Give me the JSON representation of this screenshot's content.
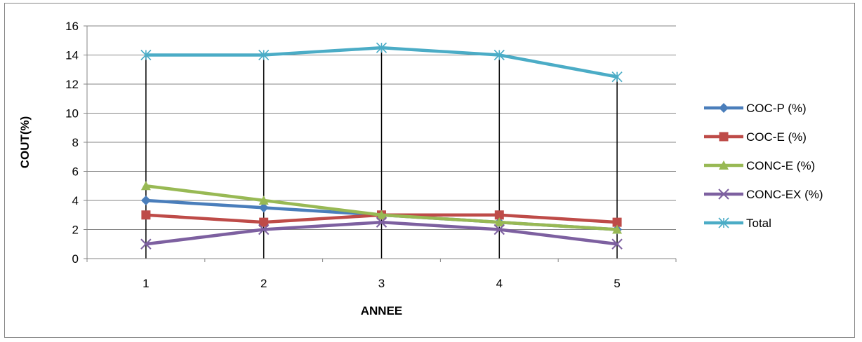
{
  "chart_data": {
    "type": "line",
    "title": "",
    "xlabel": "ANNEE",
    "ylabel": "COUT(%)",
    "categories": [
      "1",
      "2",
      "3",
      "4",
      "5"
    ],
    "ylim": [
      0,
      16
    ],
    "yticks": [
      "0",
      "2",
      "4",
      "6",
      "8",
      "10",
      "12",
      "14",
      "16"
    ],
    "grid": true,
    "drop_lines": true,
    "legend_position": "right",
    "series": [
      {
        "name": "COC-P (%)",
        "values": [
          4,
          3.5,
          3,
          2.5,
          2
        ],
        "color": "#4A7EBB",
        "marker": "diamond"
      },
      {
        "name": "COC-E (%)",
        "values": [
          3,
          2.5,
          3,
          3,
          2.5
        ],
        "color": "#BE4B48",
        "marker": "square"
      },
      {
        "name": "CONC-E (%)",
        "values": [
          5,
          4,
          3,
          2.5,
          2
        ],
        "color": "#98B954",
        "marker": "triangle"
      },
      {
        "name": "CONC-EX (%)",
        "values": [
          1,
          2,
          2.5,
          2,
          1
        ],
        "color": "#7D60A0",
        "marker": "x"
      },
      {
        "name": "Total",
        "values": [
          14,
          14,
          14.5,
          14,
          12.5
        ],
        "color": "#4BACC6",
        "marker": "star"
      }
    ]
  }
}
